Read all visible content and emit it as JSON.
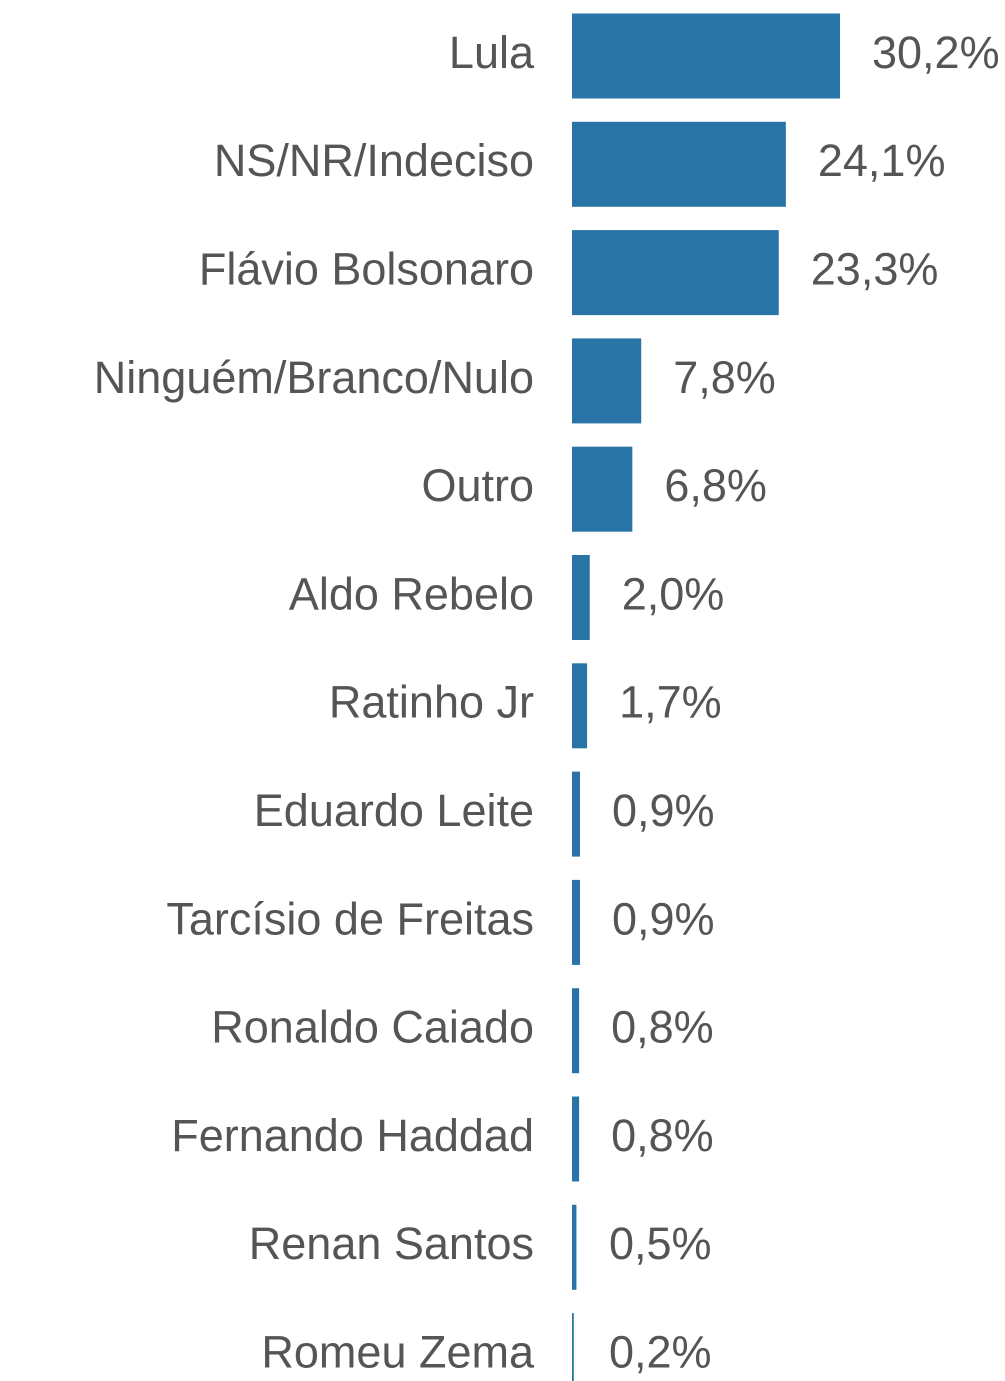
{
  "chart_data": {
    "type": "barh",
    "categories": [
      "Lula",
      "NS/NR/Indeciso",
      "Flávio Bolsonaro",
      "Ninguém/Branco/Nulo",
      "Outro",
      "Aldo Rebelo",
      "Ratinho Jr",
      "Eduardo Leite",
      "Tarcísio de Freitas",
      "Ronaldo Caiado",
      "Fernando Haddad",
      "Renan Santos",
      "Romeu Zema"
    ],
    "values": [
      30.2,
      24.1,
      23.3,
      7.8,
      6.8,
      2.0,
      1.7,
      0.9,
      0.9,
      0.8,
      0.8,
      0.5,
      0.2
    ],
    "value_labels": [
      "30,2%",
      "24,1%",
      "23,3%",
      "7,8%",
      "6,8%",
      "2,0%",
      "1,7%",
      "0,9%",
      "0,9%",
      "0,8%",
      "0,8%",
      "0,5%",
      "0,2%"
    ],
    "color": "#2874a6"
  }
}
